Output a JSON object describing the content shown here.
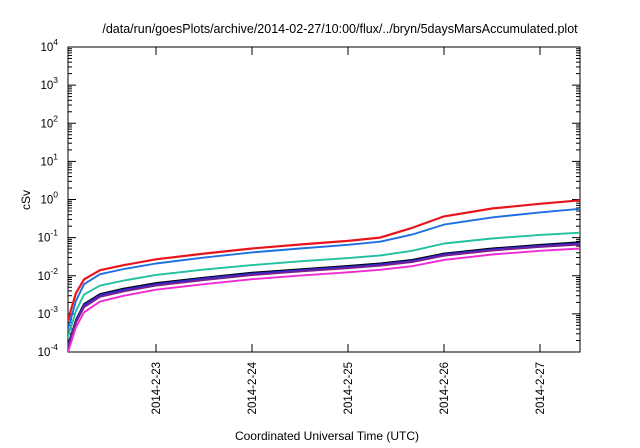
{
  "chart_data": {
    "type": "line",
    "title": "/data/run/goesPlots/archive/2014-02-27/10:00/flux/../bryn/5daysMarsAccumulated.plot",
    "xlabel": "Coordinated Universal Time (UTC)",
    "ylabel": "cSv",
    "xscale": "time",
    "yscale": "log",
    "xlim": [
      "2014-02-22T02:00",
      "2014-02-27T10:00"
    ],
    "ylim": [
      0.0001,
      10000
    ],
    "x_ticks": [
      "2014-02-23",
      "2014-02-24",
      "2014-02-25",
      "2014-02-26",
      "2014-02-27"
    ],
    "x_tick_labels": [
      "2014-2-23",
      "2014-2-24",
      "2014-2-25",
      "2014-2-26",
      "2014-2-27"
    ],
    "y_tick_labels": [
      {
        "base": "10",
        "exp": "-4"
      },
      {
        "base": "10",
        "exp": "-3"
      },
      {
        "base": "10",
        "exp": "-2"
      },
      {
        "base": "10",
        "exp": "-1"
      },
      {
        "base": "10",
        "exp": "0"
      },
      {
        "base": "10",
        "exp": "1"
      },
      {
        "base": "10",
        "exp": "2"
      },
      {
        "base": "10",
        "exp": "3"
      },
      {
        "base": "10",
        "exp": "4"
      }
    ],
    "grid": false,
    "legend": "none",
    "series": [
      {
        "color": "#e8141c",
        "x": [
          "2014-02-22T02:00",
          "2014-02-22T04:00",
          "2014-02-22T06:00",
          "2014-02-22T10:00",
          "2014-02-22T16:00",
          "2014-02-23T00:00",
          "2014-02-23T12:00",
          "2014-02-24T00:00",
          "2014-02-24T12:00",
          "2014-02-25T00:00",
          "2014-02-25T08:00",
          "2014-02-25T16:00",
          "2014-02-26T00:00",
          "2014-02-26T12:00",
          "2014-02-27T00:00",
          "2014-02-27T10:00"
        ],
        "y": [
          0.0007,
          0.0035,
          0.008,
          0.014,
          0.019,
          0.027,
          0.038,
          0.052,
          0.066,
          0.082,
          0.1,
          0.18,
          0.36,
          0.58,
          0.77,
          0.95
        ]
      },
      {
        "color": "#1f6fe3",
        "x": [
          "2014-02-22T02:00",
          "2014-02-22T04:00",
          "2014-02-22T06:00",
          "2014-02-22T10:00",
          "2014-02-22T16:00",
          "2014-02-23T00:00",
          "2014-02-23T12:00",
          "2014-02-24T00:00",
          "2014-02-24T12:00",
          "2014-02-25T00:00",
          "2014-02-25T08:00",
          "2014-02-25T16:00",
          "2014-02-26T00:00",
          "2014-02-26T12:00",
          "2014-02-27T00:00",
          "2014-02-27T10:00"
        ],
        "y": [
          0.0004,
          0.0022,
          0.006,
          0.011,
          0.015,
          0.021,
          0.03,
          0.041,
          0.052,
          0.065,
          0.078,
          0.12,
          0.22,
          0.34,
          0.46,
          0.57
        ]
      },
      {
        "color": "#20c0a0",
        "x": [
          "2014-02-22T02:00",
          "2014-02-22T04:00",
          "2014-02-22T06:00",
          "2014-02-22T10:00",
          "2014-02-22T16:00",
          "2014-02-23T00:00",
          "2014-02-23T12:00",
          "2014-02-24T00:00",
          "2014-02-24T12:00",
          "2014-02-25T00:00",
          "2014-02-25T08:00",
          "2014-02-25T16:00",
          "2014-02-26T00:00",
          "2014-02-26T12:00",
          "2014-02-27T00:00",
          "2014-02-27T10:00"
        ],
        "y": [
          0.00025,
          0.0012,
          0.0032,
          0.0055,
          0.0075,
          0.0105,
          0.0145,
          0.019,
          0.024,
          0.029,
          0.034,
          0.045,
          0.07,
          0.095,
          0.118,
          0.135
        ]
      },
      {
        "color": "#000000",
        "x": [
          "2014-02-22T02:00",
          "2014-02-22T04:00",
          "2014-02-22T06:00",
          "2014-02-22T10:00",
          "2014-02-22T16:00",
          "2014-02-23T00:00",
          "2014-02-23T12:00",
          "2014-02-24T00:00",
          "2014-02-24T12:00",
          "2014-02-25T00:00",
          "2014-02-25T08:00",
          "2014-02-25T16:00",
          "2014-02-26T00:00",
          "2014-02-26T12:00",
          "2014-02-27T00:00",
          "2014-02-27T10:00"
        ],
        "y": [
          0.00015,
          0.0007,
          0.0018,
          0.0033,
          0.0046,
          0.0064,
          0.0089,
          0.012,
          0.0148,
          0.018,
          0.021,
          0.026,
          0.038,
          0.052,
          0.065,
          0.076
        ]
      },
      {
        "color": "#2a2ad6",
        "x": [
          "2014-02-22T02:00",
          "2014-02-22T04:00",
          "2014-02-22T06:00",
          "2014-02-22T10:00",
          "2014-02-22T16:00",
          "2014-02-23T00:00",
          "2014-02-23T12:00",
          "2014-02-24T00:00",
          "2014-02-24T12:00",
          "2014-02-25T00:00",
          "2014-02-25T08:00",
          "2014-02-25T16:00",
          "2014-02-26T00:00",
          "2014-02-26T12:00",
          "2014-02-27T00:00",
          "2014-02-27T10:00"
        ],
        "y": [
          0.00014,
          0.00066,
          0.0017,
          0.0031,
          0.0043,
          0.006,
          0.0084,
          0.0113,
          0.014,
          0.017,
          0.0198,
          0.0245,
          0.036,
          0.049,
          0.061,
          0.071
        ]
      },
      {
        "color": "#7a1f8c",
        "x": [
          "2014-02-22T02:00",
          "2014-02-22T04:00",
          "2014-02-22T06:00",
          "2014-02-22T10:00",
          "2014-02-22T16:00",
          "2014-02-23T00:00",
          "2014-02-23T12:00",
          "2014-02-24T00:00",
          "2014-02-24T12:00",
          "2014-02-25T00:00",
          "2014-02-25T08:00",
          "2014-02-25T16:00",
          "2014-02-26T00:00",
          "2014-02-26T12:00",
          "2014-02-27T00:00",
          "2014-02-27T10:00"
        ],
        "y": [
          0.00013,
          0.0006,
          0.0015,
          0.0028,
          0.0039,
          0.0055,
          0.0077,
          0.0104,
          0.013,
          0.0158,
          0.0184,
          0.0228,
          0.0335,
          0.046,
          0.057,
          0.066
        ]
      },
      {
        "color": "#ef2bd4",
        "x": [
          "2014-02-22T02:00",
          "2014-02-22T04:00",
          "2014-02-22T06:00",
          "2014-02-22T10:00",
          "2014-02-22T16:00",
          "2014-02-23T00:00",
          "2014-02-23T12:00",
          "2014-02-24T00:00",
          "2014-02-24T12:00",
          "2014-02-25T00:00",
          "2014-02-25T08:00",
          "2014-02-25T16:00",
          "2014-02-26T00:00",
          "2014-02-26T12:00",
          "2014-02-27T00:00",
          "2014-02-27T10:00"
        ],
        "y": [
          0.0001,
          0.00045,
          0.0011,
          0.0021,
          0.003,
          0.0043,
          0.006,
          0.0081,
          0.0101,
          0.0123,
          0.0143,
          0.0178,
          0.026,
          0.036,
          0.045,
          0.052
        ]
      }
    ]
  }
}
